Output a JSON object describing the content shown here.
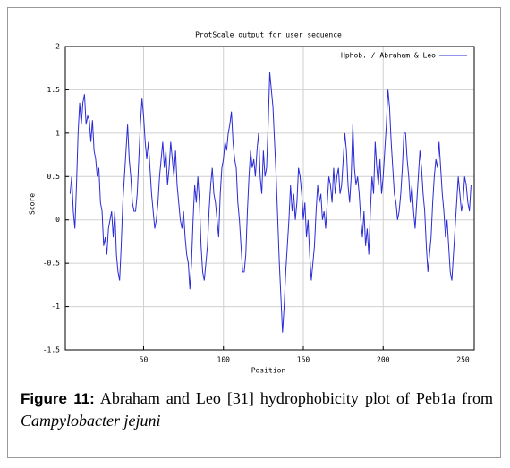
{
  "chart_data": {
    "type": "line",
    "title": "ProtScale output for user sequence",
    "xlabel": "Position",
    "ylabel": "Score",
    "xlim": [
      1,
      257
    ],
    "ylim": [
      -1.5,
      2
    ],
    "xticks": [
      50,
      100,
      150,
      200,
      250
    ],
    "yticks": [
      2,
      1.5,
      1,
      0.5,
      0,
      -0.5,
      -1,
      -1.5
    ],
    "grid": true,
    "legend": "upper right",
    "x": [
      4,
      5,
      6,
      7,
      8,
      9,
      10,
      11,
      12,
      13,
      14,
      15,
      16,
      17,
      18,
      19,
      20,
      21,
      22,
      23,
      24,
      25,
      26,
      27,
      28,
      29,
      30,
      31,
      32,
      33,
      34,
      35,
      36,
      37,
      38,
      39,
      40,
      41,
      42,
      43,
      44,
      45,
      46,
      47,
      48,
      49,
      50,
      51,
      52,
      53,
      54,
      55,
      56,
      57,
      58,
      59,
      60,
      61,
      62,
      63,
      64,
      65,
      66,
      67,
      68,
      69,
      70,
      71,
      72,
      73,
      74,
      75,
      76,
      77,
      78,
      79,
      80,
      81,
      82,
      83,
      84,
      85,
      86,
      87,
      88,
      89,
      90,
      91,
      92,
      93,
      94,
      95,
      96,
      97,
      98,
      99,
      100,
      101,
      102,
      103,
      104,
      105,
      106,
      107,
      108,
      109,
      110,
      111,
      112,
      113,
      114,
      115,
      116,
      117,
      118,
      119,
      120,
      121,
      122,
      123,
      124,
      125,
      126,
      127,
      128,
      129,
      130,
      131,
      132,
      133,
      134,
      135,
      136,
      137,
      138,
      139,
      140,
      141,
      142,
      143,
      144,
      145,
      146,
      147,
      148,
      149,
      150,
      151,
      152,
      153,
      154,
      155,
      156,
      157,
      158,
      159,
      160,
      161,
      162,
      163,
      164,
      165,
      166,
      167,
      168,
      169,
      170,
      171,
      172,
      173,
      174,
      175,
      176,
      177,
      178,
      179,
      180,
      181,
      182,
      183,
      184,
      185,
      186,
      187,
      188,
      189,
      190,
      191,
      192,
      193,
      194,
      195,
      196,
      197,
      198,
      199,
      200,
      201,
      202,
      203,
      204,
      205,
      206,
      207,
      208,
      209,
      210,
      211,
      212,
      213,
      214,
      215,
      216,
      217,
      218,
      219,
      220,
      221,
      222,
      223,
      224,
      225,
      226,
      227,
      228,
      229,
      230,
      231,
      232,
      233,
      234,
      235,
      236,
      237,
      238,
      239,
      240,
      241,
      242,
      243,
      244,
      245,
      246,
      247,
      248,
      249,
      250,
      251,
      252,
      253,
      254,
      255
    ],
    "series": [
      {
        "name": "Hphob. / Abraham & Leo",
        "color": "#2a2ad8",
        "values": [
          0.3,
          0.5,
          0.1,
          -0.1,
          0.4,
          1.0,
          1.35,
          1.1,
          1.35,
          1.45,
          1.1,
          1.2,
          1.15,
          0.9,
          1.15,
          0.8,
          0.7,
          0.5,
          0.6,
          0.2,
          0.1,
          -0.3,
          -0.2,
          -0.4,
          -0.1,
          0.0,
          0.1,
          -0.2,
          0.1,
          -0.4,
          -0.6,
          -0.7,
          -0.3,
          0.2,
          0.5,
          0.8,
          1.1,
          0.7,
          0.5,
          0.2,
          0.1,
          0.1,
          0.3,
          0.7,
          1.1,
          1.4,
          1.2,
          0.9,
          0.7,
          0.9,
          0.6,
          0.3,
          0.1,
          -0.1,
          0.0,
          0.2,
          0.5,
          0.7,
          0.9,
          0.6,
          0.8,
          0.4,
          0.6,
          0.9,
          0.7,
          0.5,
          0.8,
          0.4,
          0.2,
          0.0,
          -0.1,
          0.1,
          -0.2,
          -0.4,
          -0.5,
          -0.8,
          -0.5,
          0.0,
          0.4,
          0.2,
          0.5,
          0.2,
          -0.3,
          -0.6,
          -0.7,
          -0.5,
          -0.3,
          0.1,
          0.4,
          0.6,
          0.3,
          0.2,
          0.0,
          -0.2,
          0.3,
          0.6,
          0.7,
          0.9,
          0.8,
          1.0,
          1.1,
          1.25,
          0.9,
          0.7,
          0.6,
          0.2,
          0.0,
          -0.3,
          -0.6,
          -0.6,
          -0.4,
          0.1,
          0.5,
          0.8,
          0.6,
          0.7,
          0.5,
          0.8,
          1.0,
          0.5,
          0.3,
          0.8,
          0.5,
          0.6,
          1.1,
          1.7,
          1.5,
          1.3,
          0.9,
          0.5,
          0.0,
          -0.5,
          -0.9,
          -1.3,
          -1.0,
          -0.6,
          -0.3,
          0.0,
          0.4,
          0.1,
          0.3,
          0.0,
          0.2,
          0.6,
          0.5,
          0.3,
          0.0,
          0.2,
          -0.2,
          0.0,
          -0.4,
          -0.7,
          -0.5,
          -0.3,
          0.1,
          0.4,
          0.2,
          0.3,
          0.0,
          0.1,
          -0.1,
          0.2,
          0.5,
          0.4,
          0.2,
          0.6,
          0.3,
          0.5,
          0.6,
          0.3,
          0.4,
          0.7,
          1.0,
          0.8,
          0.4,
          0.2,
          0.5,
          1.1,
          0.6,
          0.4,
          0.5,
          0.3,
          0.0,
          -0.2,
          0.1,
          -0.3,
          -0.1,
          -0.4,
          0.1,
          0.5,
          0.3,
          0.9,
          0.6,
          0.4,
          0.7,
          0.3,
          0.5,
          0.8,
          1.1,
          1.5,
          1.3,
          0.9,
          0.6,
          0.3,
          0.2,
          0.0,
          0.1,
          0.3,
          0.6,
          1.0,
          1.0,
          0.7,
          0.5,
          0.2,
          0.4,
          0.1,
          -0.1,
          0.2,
          0.5,
          0.8,
          0.6,
          0.3,
          0.1,
          -0.3,
          -0.6,
          -0.4,
          -0.2,
          0.2,
          0.5,
          0.7,
          0.6,
          0.9,
          0.6,
          0.3,
          0.1,
          -0.2,
          0.0,
          -0.3,
          -0.6,
          -0.7,
          -0.4,
          -0.1,
          0.2,
          0.5,
          0.3,
          0.1,
          0.2,
          0.5,
          0.4,
          0.2,
          0.1,
          0.4
        ]
      }
    ]
  },
  "caption": {
    "label": "Figure 11:",
    "text": "Abraham and Leo [31] hydrophobicity plot of Peb1a from",
    "species": "Campylobacter jejuni"
  }
}
